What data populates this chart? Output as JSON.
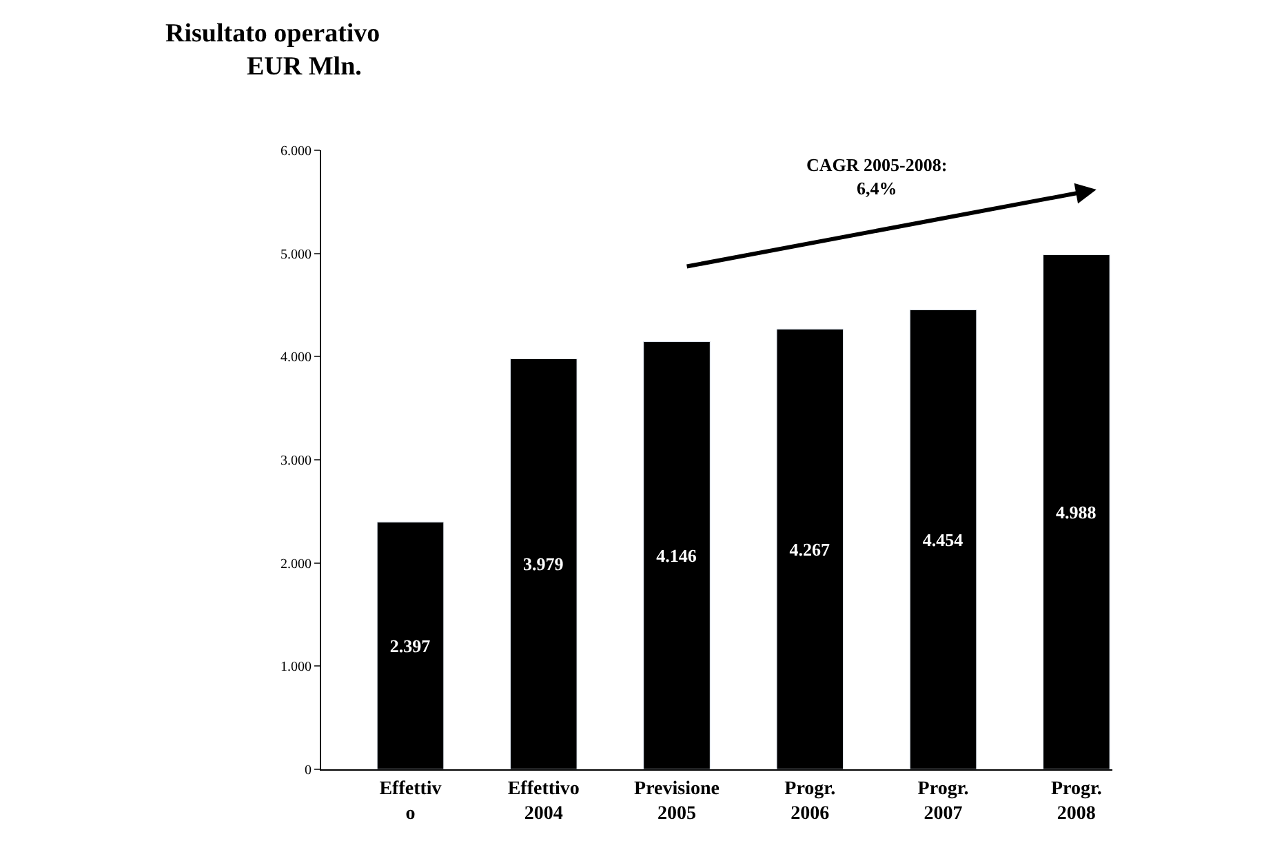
{
  "chart_data": {
    "type": "bar",
    "title": "Risultato operativo",
    "subtitle": "EUR Mln.",
    "categories": [
      "Effettiv\no",
      "Effettivo\n2004",
      "Previsione\n2005",
      "Progr.\n2006",
      "Progr.\n2007",
      "Progr.\n2008"
    ],
    "values": [
      2397,
      3979,
      4146,
      4267,
      4454,
      4988
    ],
    "value_labels": [
      "2.397",
      "3.979",
      "4.146",
      "4.267",
      "4.454",
      "4.988"
    ],
    "color": "#000000",
    "ylim": [
      0,
      6000
    ],
    "yticks": [
      {
        "value": 0,
        "label": "0"
      },
      {
        "value": 1000,
        "label": "1.000"
      },
      {
        "value": 2000,
        "label": "2.000"
      },
      {
        "value": 3000,
        "label": "3.000"
      },
      {
        "value": 4000,
        "label": "4.000"
      },
      {
        "value": 5000,
        "label": "5.000"
      },
      {
        "value": 6000,
        "label": "6.000"
      }
    ],
    "legend": false,
    "annotations": [
      "CAGR 2005-2008:\n6,4%"
    ]
  }
}
